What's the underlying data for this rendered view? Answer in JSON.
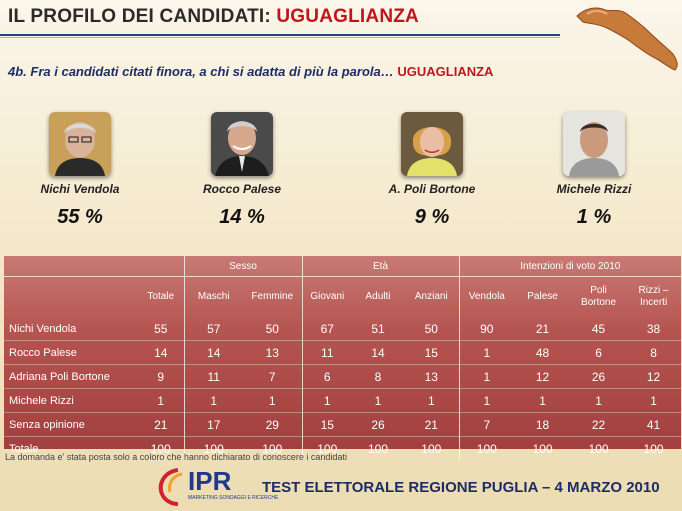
{
  "header": {
    "title_main": "IL PROFILO DEI CANDIDATI: ",
    "title_highlight": "UGUAGLIANZA"
  },
  "question": {
    "text": "4b. Fra i candidati citati finora, a chi si adatta di più la parola… ",
    "highlight": "UGUAGLIANZA"
  },
  "candidates": [
    {
      "name": "Nichi Vendola",
      "pct": "55 %"
    },
    {
      "name": "Rocco Palese",
      "pct": "14 %"
    },
    {
      "name": "A. Poli Bortone",
      "pct": "9 %"
    },
    {
      "name": "Michele Rizzi",
      "pct": "1 %"
    }
  ],
  "table": {
    "groups": [
      "Sesso",
      "Età",
      "Intenzioni di voto 2010"
    ],
    "columns": [
      "Totale",
      "Maschi",
      "Femmine",
      "Giovani",
      "Adulti",
      "Anziani",
      "Vendola",
      "Palese",
      "Poli\nBortone",
      "Rizzi –\nIncerti"
    ],
    "rows": [
      {
        "label": "Nichi Vendola",
        "values": [
          "55",
          "57",
          "50",
          "67",
          "51",
          "50",
          "90",
          "21",
          "45",
          "38"
        ]
      },
      {
        "label": "Rocco Palese",
        "values": [
          "14",
          "14",
          "13",
          "11",
          "14",
          "15",
          "1",
          "48",
          "6",
          "8"
        ]
      },
      {
        "label": "Adriana Poli Bortone",
        "values": [
          "9",
          "11",
          "7",
          "6",
          "8",
          "13",
          "1",
          "12",
          "26",
          "12"
        ]
      },
      {
        "label": "Michele Rizzi",
        "values": [
          "1",
          "1",
          "1",
          "1",
          "1",
          "1",
          "1",
          "1",
          "1",
          "1"
        ]
      },
      {
        "label": "Senza opinione",
        "values": [
          "21",
          "17",
          "29",
          "15",
          "26",
          "21",
          "7",
          "18",
          "22",
          "41"
        ]
      },
      {
        "label": "Totale",
        "values": [
          "100",
          "100",
          "100",
          "100",
          "100",
          "100",
          "100",
          "100",
          "100",
          "100"
        ]
      }
    ]
  },
  "note": "La domanda e' stata posta solo a coloro che hanno dichiarato di conoscere i candidati",
  "logo": {
    "name": "IPR",
    "sub": "MARKETING  SONDAGGI E RICERCHE"
  },
  "footer": "TEST ELETTORALE REGIONE PUGLIA – 4 MARZO 2010",
  "colors": {
    "accent_red": "#c0161b",
    "navy": "#1c2d66",
    "table_bg": "#b4534f"
  }
}
